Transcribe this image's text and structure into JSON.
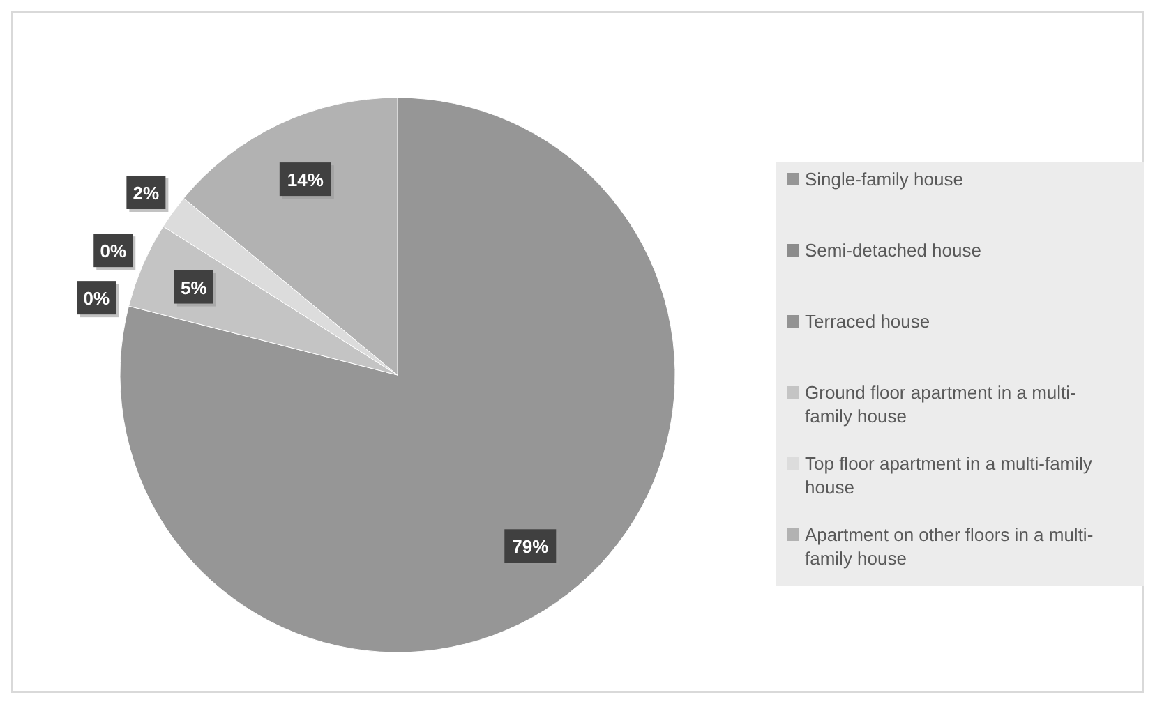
{
  "chart_data": {
    "type": "pie",
    "categories": [
      "Single-family house",
      "Semi-detached house",
      "Terraced house",
      "Ground floor apartment in a multi-family house",
      "Top floor apartment in a multi-family house",
      "Apartment on other floors in a multi-family house"
    ],
    "values": [
      79,
      0,
      0,
      5,
      2,
      14
    ],
    "colors": [
      "#969696",
      "#8c8c8c",
      "#939393",
      "#c4c4c4",
      "#dcdcdc",
      "#b2b2b2"
    ],
    "value_labels": [
      "79%",
      "0%",
      "0%",
      "5%",
      "2%",
      "14%"
    ],
    "legend": "right"
  }
}
